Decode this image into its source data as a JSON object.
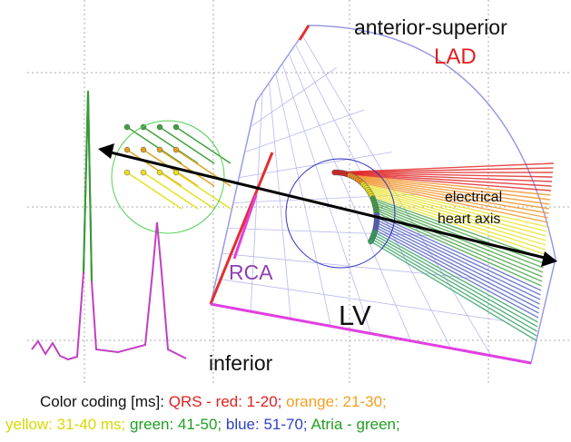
{
  "labels": {
    "top": "anterior-superior",
    "lad": "LAD",
    "axis": [
      "electrical",
      "heart axis"
    ],
    "rca": "RCA",
    "lv": "LV",
    "bottom": "inferior"
  },
  "legend": {
    "line1": [
      {
        "text": "Color coding [ms]:",
        "color": "#111111"
      },
      {
        "text": "QRS - red: 1-20;",
        "color": "#e02020"
      },
      {
        "text": "orange: 21-30;",
        "color": "#f0a020"
      }
    ],
    "line2": [
      {
        "text": "yellow: 31-40 ms;",
        "color": "#d8d800"
      },
      {
        "text": "green: 41-50;",
        "color": "#20a020"
      },
      {
        "text": "blue: 51-70;",
        "color": "#3040c0"
      },
      {
        "text": "Atria - green;",
        "color": "#20a020"
      }
    ]
  }
}
